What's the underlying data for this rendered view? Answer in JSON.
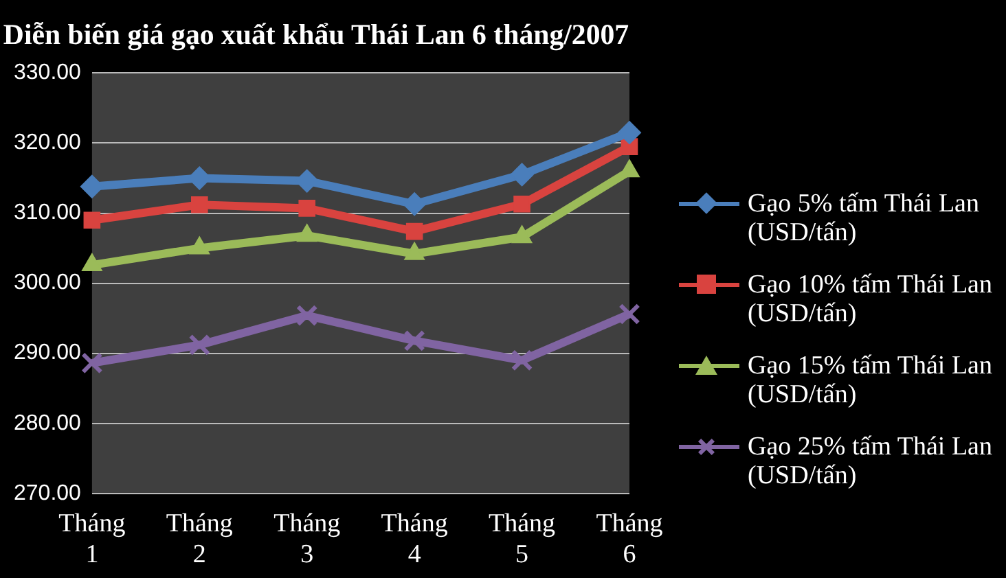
{
  "chart_data": {
    "type": "line",
    "title": "Diễn biến giá gạo xuất khẩu Thái Lan 6 tháng/2007",
    "categories": [
      "Tháng 1",
      "Tháng 2",
      "Tháng 3",
      "Tháng 4",
      "Tháng 5",
      "Tháng 6"
    ],
    "series": [
      {
        "name": "Gạo 5% tấm Thái Lan (USD/tấn)",
        "color": "#4a7ebb",
        "marker": "diamond",
        "values": [
          313.8,
          315.0,
          314.6,
          311.3,
          315.5,
          321.5
        ]
      },
      {
        "name": "Gạo 10% tấm Thái Lan (USD/tấn)",
        "color": "#d9433f",
        "marker": "square",
        "values": [
          309.0,
          311.2,
          310.7,
          307.4,
          311.3,
          319.5
        ]
      },
      {
        "name": "Gạo 15% tấm Thái Lan (USD/tấn)",
        "color": "#9bbb59",
        "marker": "triangle",
        "values": [
          302.6,
          305.0,
          306.8,
          304.2,
          306.6,
          316.0
        ]
      },
      {
        "name": "Gạo 25% tấm Thái Lan (USD/tấn)",
        "color": "#8064a2",
        "marker": "cross",
        "values": [
          288.6,
          291.2,
          295.4,
          291.8,
          289.0,
          295.6
        ]
      }
    ],
    "ylim": [
      270,
      330
    ],
    "yticks": [
      {
        "value": 270,
        "label": "270.00"
      },
      {
        "value": 280,
        "label": "280.00"
      },
      {
        "value": 290,
        "label": "290.00"
      },
      {
        "value": 300,
        "label": "300.00"
      },
      {
        "value": 310,
        "label": "310.00"
      },
      {
        "value": 320,
        "label": "320.00"
      },
      {
        "value": 330,
        "label": "330.00"
      }
    ],
    "grid": "y",
    "legend": "right"
  }
}
